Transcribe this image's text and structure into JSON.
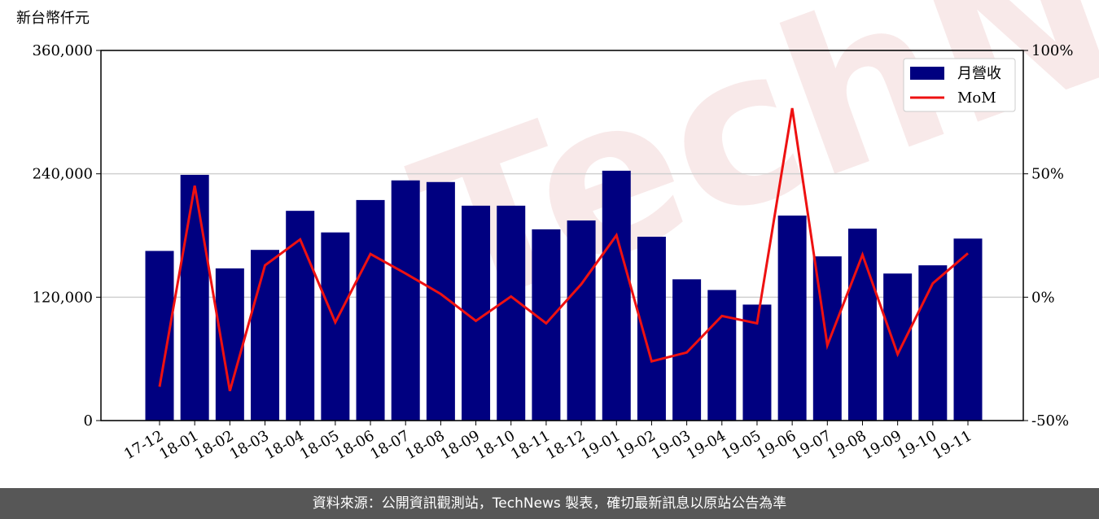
{
  "chart_data": {
    "type": "bar_line",
    "watermark": "TechNews",
    "y_label": "新台幣仟元",
    "categories": [
      "17-12",
      "18-01",
      "18-02",
      "18-03",
      "18-04",
      "18-05",
      "18-06",
      "18-07",
      "18-08",
      "18-09",
      "18-10",
      "18-11",
      "18-12",
      "19-01",
      "19-02",
      "19-03",
      "19-04",
      "19-05",
      "19-06",
      "19-07",
      "19-08",
      "19-09",
      "19-10",
      "19-11"
    ],
    "series": [
      {
        "name": "月營收",
        "color": "#000080",
        "values": [
          165000,
          239000,
          148000,
          166000,
          204000,
          183000,
          214500,
          233600,
          232000,
          209000,
          209000,
          186000,
          194600,
          243000,
          178800,
          137400,
          127000,
          112800,
          199400,
          159700,
          186700,
          143000,
          151000,
          177000
        ]
      },
      {
        "name": "MoM",
        "color": "#ee1111",
        "axis": "y2",
        "values": [
          -36.3,
          45.2,
          -38,
          12.9,
          23.4,
          -10.2,
          17.5,
          9.6,
          1.3,
          -9.6,
          0.3,
          -10.6,
          5.3,
          25.1,
          -26,
          -22.4,
          -7.6,
          -10.6,
          76.6,
          -19.5,
          17.2,
          -23.1,
          5.6,
          17.8
        ]
      }
    ],
    "ylim": [
      0,
      360000
    ],
    "yticks": [
      0,
      {
        "value": 120000,
        "label": "120,000"
      },
      {
        "value": 240000,
        "label": "240,000"
      },
      {
        "value": 360000,
        "label": "360,000"
      }
    ],
    "y2lim": [
      -50,
      100
    ],
    "y2ticks": [
      {
        "value": -50,
        "label": "-50%"
      },
      {
        "value": 0,
        "label": "0%"
      },
      {
        "value": 50,
        "label": "50%"
      },
      {
        "value": 100,
        "label": "100%"
      }
    ],
    "grid": true,
    "legend": "upper right",
    "footer": "資料來源：公開資訊觀測站，TechNews 製表，確切最新訊息以原站公告為準"
  }
}
